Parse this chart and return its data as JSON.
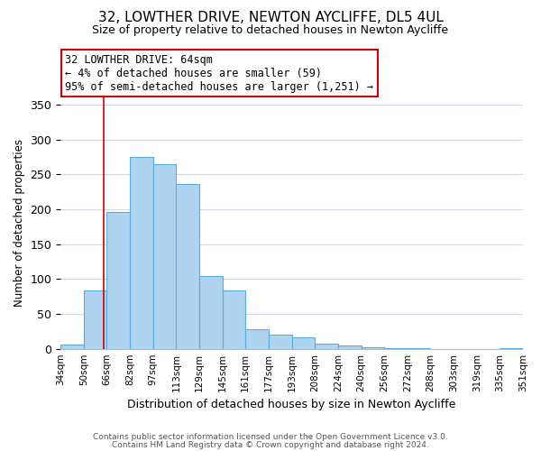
{
  "title": "32, LOWTHER DRIVE, NEWTON AYCLIFFE, DL5 4UL",
  "subtitle": "Size of property relative to detached houses in Newton Aycliffe",
  "xlabel": "Distribution of detached houses by size in Newton Aycliffe",
  "ylabel": "Number of detached properties",
  "bin_labels": [
    "34sqm",
    "50sqm",
    "66sqm",
    "82sqm",
    "97sqm",
    "113sqm",
    "129sqm",
    "145sqm",
    "161sqm",
    "177sqm",
    "193sqm",
    "208sqm",
    "224sqm",
    "240sqm",
    "256sqm",
    "272sqm",
    "288sqm",
    "303sqm",
    "319sqm",
    "335sqm",
    "351sqm"
  ],
  "bar_values": [
    6,
    84,
    196,
    275,
    265,
    236,
    104,
    84,
    28,
    20,
    16,
    7,
    5,
    2,
    1,
    1,
    0,
    0,
    0,
    1
  ],
  "bar_color": "#aed4f0",
  "bar_edge_color": "#5aacdd",
  "ylim": [
    0,
    360
  ],
  "yticks": [
    0,
    50,
    100,
    150,
    200,
    250,
    300,
    350
  ],
  "annotation_title": "32 LOWTHER DRIVE: 64sqm",
  "annotation_line1": "← 4% of detached houses are smaller (59)",
  "annotation_line2": "95% of semi-detached houses are larger (1,251) →",
  "annotation_box_color": "#ffffff",
  "annotation_box_edge": "#cc0000",
  "footer1": "Contains HM Land Registry data © Crown copyright and database right 2024.",
  "footer2": "Contains public sector information licensed under the Open Government Licence v3.0.",
  "background_color": "#ffffff",
  "grid_color": "#d0d8e8",
  "property_sqm": 64,
  "red_line_color": "#cc0000"
}
